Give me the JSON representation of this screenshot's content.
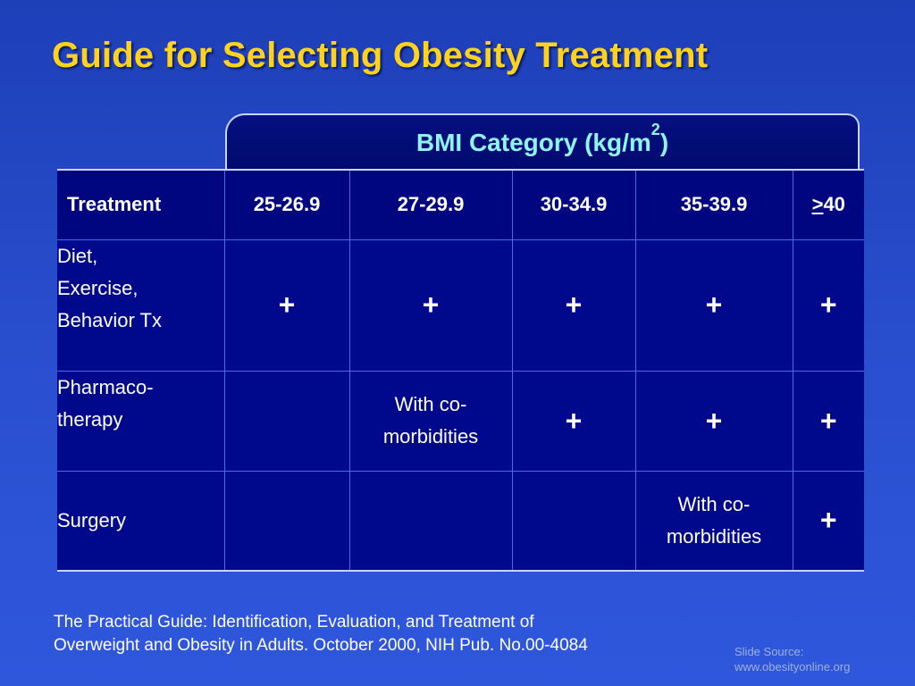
{
  "title": "Guide for Selecting Obesity Treatment",
  "bmi_header": {
    "label": "BMI Category (kg/m",
    "superscript": "2",
    "close": ")"
  },
  "table": {
    "treatment_header": "Treatment",
    "columns": [
      "25-26.9",
      "27-29.9",
      "30-34.9",
      "35-39.9"
    ],
    "last_column": {
      "symbol": ">",
      "value": "40"
    },
    "rows": [
      {
        "label_lines": [
          "Diet,",
          "Exercise,",
          "Behavior Tx"
        ],
        "cells": [
          "+",
          "+",
          "+",
          "+",
          "+"
        ]
      },
      {
        "label_lines": [
          "Pharmaco-",
          "therapy"
        ],
        "cells": [
          "",
          [
            "With co-",
            "morbidities"
          ],
          "+",
          "+",
          "+"
        ]
      },
      {
        "label_lines": [
          "Surgery"
        ],
        "cells": [
          "",
          "",
          "",
          [
            "With co-",
            "morbidities"
          ],
          "+"
        ]
      }
    ]
  },
  "citation": {
    "line1": "The Practical Guide: Identification, Evaluation, and Treatment of",
    "line2": "Overweight and Obesity in Adults. October 2000, NIH Pub. No.00-4084"
  },
  "source": {
    "line1": "Slide Source:",
    "line2": "www.obesityonline.org"
  },
  "colors": {
    "title": "#ffd21f",
    "header_text": "#8ff3f0",
    "table_bg": "#00088c",
    "background": "#2a4fd0"
  }
}
